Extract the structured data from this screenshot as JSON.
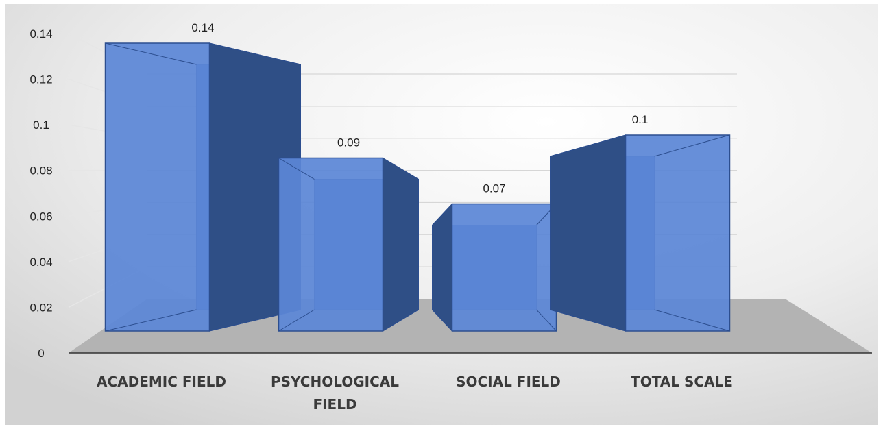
{
  "chart_data": {
    "type": "bar",
    "title": "",
    "xlabel": "",
    "ylabel": "",
    "categories": [
      "ACADEMIC FIELD",
      "PSYCHOLOGICAL FIELD",
      "SOCIAL FIELD",
      "TOTAL SCALE"
    ],
    "values": [
      0.14,
      0.09,
      0.07,
      0.1
    ],
    "data_labels": [
      "0.14",
      "0.09",
      "0.07",
      "0.1"
    ],
    "ylim": [
      0,
      0.14
    ],
    "y_ticks": [
      "0",
      "0.02",
      "0.04",
      "0.06",
      "0.08",
      "0.1",
      "0.12",
      "0.14"
    ],
    "grid": true,
    "legend": "none",
    "style": "3d-column",
    "colors": {
      "bar_front": "#5b87d6",
      "bar_side": "#2f4f86",
      "bar_edge": "#2c4e8f",
      "floor": "#b3b3b3",
      "axis": "#333333"
    }
  }
}
